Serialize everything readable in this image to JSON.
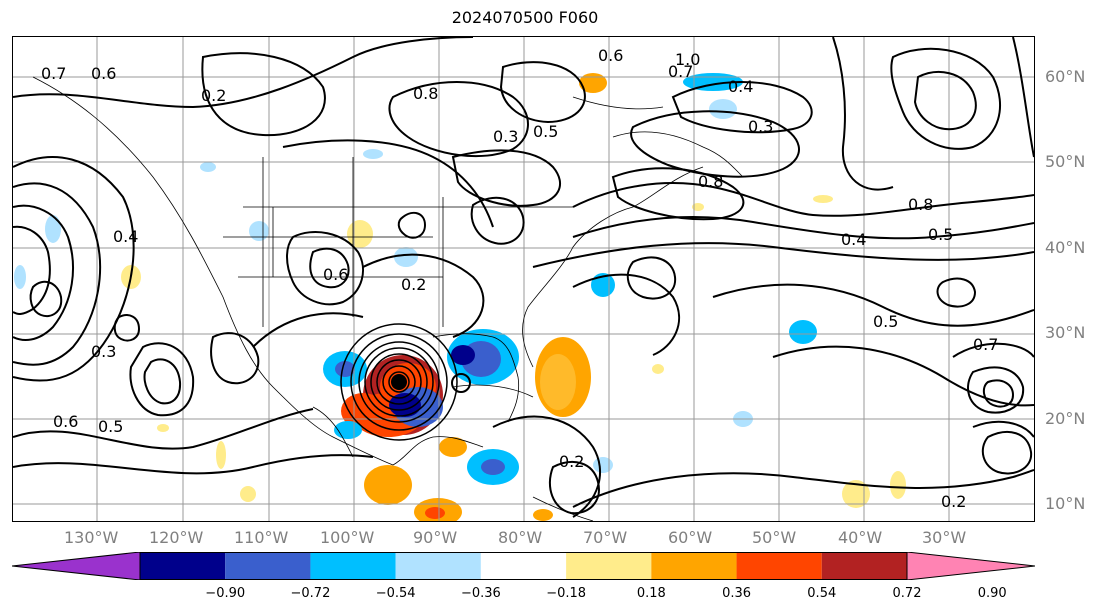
{
  "title": "2024070500 F060",
  "lon_labels": [
    "130°W",
    "120°W",
    "110°W",
    "100°W",
    "90°W",
    "80°W",
    "70°W",
    "60°W",
    "50°W",
    "40°W",
    "30°W"
  ],
  "lat_labels": [
    "60°N",
    "50°N",
    "40°N",
    "30°N",
    "20°N",
    "10°N"
  ],
  "colorbar": {
    "ticks": [
      "−0.90",
      "−0.72",
      "−0.54",
      "−0.36",
      "−0.18",
      "0.18",
      "0.36",
      "0.54",
      "0.72",
      "0.90"
    ],
    "colors": [
      "#9a32cd",
      "#00008b",
      "#3a5fcd",
      "#00bfff",
      "#b0e2ff",
      "#ffffff",
      "#ffec8b",
      "#ffa500",
      "#ff4500",
      "#b22222",
      "#ff83b3"
    ]
  },
  "contour_labels": [
    "0.2",
    "0.6",
    "0.4",
    "0.3",
    "0.5",
    "0.8",
    "0.7",
    "0.2",
    "0.6",
    "0.5",
    "0.4",
    "0.8",
    "0.3",
    "0.7",
    "0.2",
    "0.5",
    "0.6",
    "0.8",
    "0.7",
    "0.4",
    "1.0",
    "0.6",
    "0.3",
    "0.5",
    "0.2"
  ],
  "colors": {
    "grid": "#999999",
    "contour": "#000000",
    "tick_label": "#808080"
  }
}
